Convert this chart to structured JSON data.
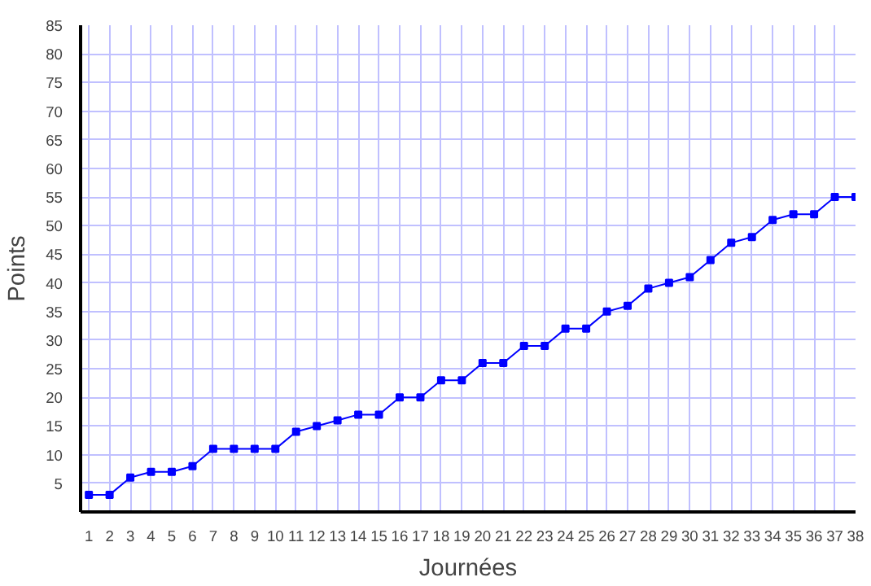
{
  "chart_data": {
    "type": "line",
    "xlabel": "Journées",
    "ylabel": "Points",
    "x": [
      1,
      2,
      3,
      4,
      5,
      6,
      7,
      8,
      9,
      10,
      11,
      12,
      13,
      14,
      15,
      16,
      17,
      18,
      19,
      20,
      21,
      22,
      23,
      24,
      25,
      26,
      27,
      28,
      29,
      30,
      31,
      32,
      33,
      34,
      35,
      36,
      37,
      38
    ],
    "series": [
      {
        "color": "#0000ff",
        "values": [
          3,
          3,
          6,
          7,
          7,
          8,
          11,
          11,
          11,
          11,
          14,
          15,
          16,
          17,
          17,
          20,
          20,
          23,
          23,
          26,
          26,
          29,
          29,
          32,
          32,
          35,
          36,
          39,
          40,
          41,
          44,
          47,
          48,
          51,
          52,
          52,
          55,
          55
        ]
      }
    ],
    "xlim": [
      0.6,
      38
    ],
    "ylim": [
      0,
      85
    ],
    "xticks": [
      1,
      2,
      3,
      4,
      5,
      6,
      7,
      8,
      9,
      10,
      11,
      12,
      13,
      14,
      15,
      16,
      17,
      18,
      19,
      20,
      21,
      22,
      23,
      24,
      25,
      26,
      27,
      28,
      29,
      30,
      31,
      32,
      33,
      34,
      35,
      36,
      37,
      38
    ],
    "yticks": [
      5,
      10,
      15,
      20,
      25,
      30,
      35,
      40,
      45,
      50,
      55,
      60,
      65,
      70,
      75,
      80,
      85
    ],
    "grid": true,
    "marker": "square",
    "line_style": "solid"
  }
}
